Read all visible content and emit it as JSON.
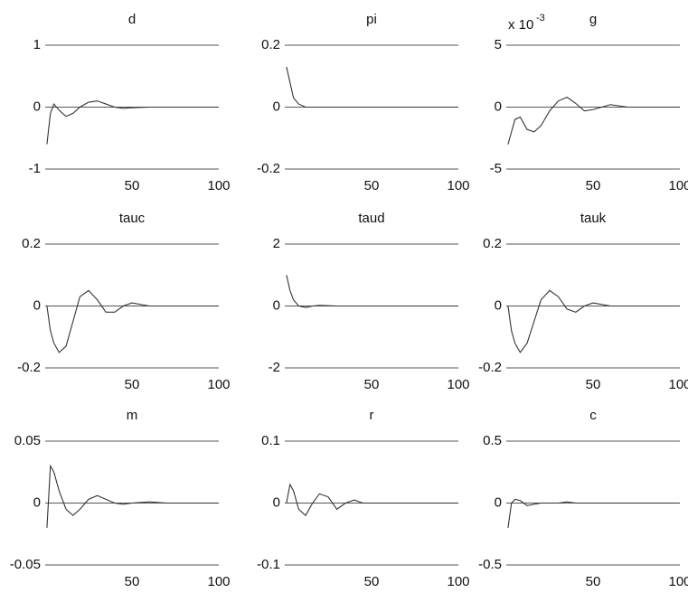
{
  "chart_data": [
    {
      "type": "line",
      "title": "d",
      "x": [
        1,
        3,
        5,
        8,
        12,
        16,
        20,
        25,
        30,
        35,
        40,
        45,
        50,
        60,
        70,
        80,
        100
      ],
      "values": [
        -0.6,
        -0.1,
        0.05,
        -0.05,
        -0.15,
        -0.1,
        0,
        0.08,
        0.1,
        0.05,
        0,
        -0.02,
        -0.01,
        0,
        0,
        0,
        0
      ],
      "xlim": [
        0,
        100
      ],
      "xticks": [
        50,
        100
      ],
      "ylim": [
        -1,
        1
      ],
      "yticks": [
        -1,
        0,
        1
      ],
      "grid": true,
      "color": "#333333"
    },
    {
      "type": "line",
      "title": "pi",
      "x": [
        1,
        3,
        5,
        8,
        12,
        16,
        20,
        25,
        30,
        35,
        40,
        45,
        50,
        60,
        70,
        80,
        100
      ],
      "values": [
        0.13,
        0.08,
        0.03,
        0.01,
        0,
        0,
        0,
        0,
        0,
        0,
        0,
        0,
        0,
        0,
        0,
        0,
        0
      ],
      "xlim": [
        0,
        100
      ],
      "xticks": [
        50,
        100
      ],
      "ylim": [
        -0.2,
        0.2
      ],
      "yticks": [
        -0.2,
        0,
        0.2
      ],
      "grid": true,
      "color": "#333333"
    },
    {
      "type": "line",
      "title": "g",
      "scale_label": "x 10",
      "scale_exponent": "-3",
      "x": [
        1,
        3,
        5,
        8,
        12,
        16,
        20,
        25,
        30,
        35,
        40,
        45,
        50,
        60,
        70,
        80,
        100
      ],
      "values": [
        -3,
        -2,
        -1,
        -0.8,
        -1.8,
        -2,
        -1.5,
        -0.3,
        0.5,
        0.8,
        0.3,
        -0.3,
        -0.2,
        0.2,
        0,
        0,
        0
      ],
      "xlim": [
        0,
        100
      ],
      "xticks": [
        50,
        100
      ],
      "ylim": [
        -5,
        5
      ],
      "yticks": [
        -5,
        0,
        5
      ],
      "grid": true,
      "color": "#333333"
    },
    {
      "type": "line",
      "title": "tauc",
      "x": [
        1,
        3,
        5,
        8,
        12,
        16,
        20,
        25,
        30,
        35,
        40,
        45,
        50,
        60,
        70,
        80,
        100
      ],
      "values": [
        0,
        -0.08,
        -0.12,
        -0.15,
        -0.13,
        -0.05,
        0.03,
        0.05,
        0.02,
        -0.02,
        -0.02,
        0,
        0.01,
        0,
        0,
        0,
        0
      ],
      "xlim": [
        0,
        100
      ],
      "xticks": [
        50,
        100
      ],
      "ylim": [
        -0.2,
        0.2
      ],
      "yticks": [
        -0.2,
        0,
        0.2
      ],
      "grid": true,
      "color": "#333333"
    },
    {
      "type": "line",
      "title": "taud",
      "x": [
        1,
        3,
        5,
        8,
        12,
        16,
        20,
        25,
        30,
        35,
        40,
        45,
        50,
        60,
        70,
        80,
        100
      ],
      "values": [
        1,
        0.5,
        0.2,
        0,
        -0.05,
        0,
        0.02,
        0.01,
        0,
        0,
        0,
        0,
        0,
        0,
        0,
        0,
        0
      ],
      "xlim": [
        0,
        100
      ],
      "xticks": [
        50,
        100
      ],
      "ylim": [
        -2,
        2
      ],
      "yticks": [
        -2,
        0,
        2
      ],
      "grid": true,
      "color": "#333333"
    },
    {
      "type": "line",
      "title": "tauk",
      "x": [
        1,
        3,
        5,
        8,
        12,
        16,
        20,
        25,
        30,
        35,
        40,
        45,
        50,
        60,
        70,
        80,
        100
      ],
      "values": [
        0,
        -0.08,
        -0.12,
        -0.15,
        -0.12,
        -0.05,
        0.02,
        0.05,
        0.03,
        -0.01,
        -0.02,
        0,
        0.01,
        0,
        0,
        0,
        0
      ],
      "xlim": [
        0,
        100
      ],
      "xticks": [
        50,
        100
      ],
      "ylim": [
        -0.2,
        0.2
      ],
      "yticks": [
        -0.2,
        0,
        0.2
      ],
      "grid": true,
      "color": "#333333"
    },
    {
      "type": "line",
      "title": "m",
      "x": [
        1,
        3,
        5,
        8,
        12,
        16,
        20,
        25,
        30,
        35,
        40,
        45,
        50,
        60,
        70,
        80,
        100
      ],
      "values": [
        -0.02,
        0.03,
        0.025,
        0.01,
        -0.005,
        -0.01,
        -0.005,
        0.003,
        0.006,
        0.003,
        0,
        -0.001,
        0,
        0.001,
        0,
        0,
        0
      ],
      "xlim": [
        0,
        100
      ],
      "xticks": [
        50,
        100
      ],
      "ylim": [
        -0.05,
        0.05
      ],
      "yticks": [
        -0.05,
        0,
        0.05
      ],
      "grid": true,
      "color": "#333333"
    },
    {
      "type": "line",
      "title": "r",
      "x": [
        1,
        3,
        5,
        8,
        12,
        16,
        20,
        25,
        30,
        35,
        40,
        45,
        50,
        60,
        70,
        80,
        100
      ],
      "values": [
        0,
        0.03,
        0.02,
        -0.01,
        -0.02,
        0,
        0.015,
        0.01,
        -0.01,
        0,
        0.005,
        0,
        0,
        0,
        0,
        0,
        0
      ],
      "xlim": [
        0,
        100
      ],
      "xticks": [
        50,
        100
      ],
      "ylim": [
        -0.1,
        0.1
      ],
      "yticks": [
        -0.1,
        0,
        0.1
      ],
      "grid": true,
      "color": "#333333"
    },
    {
      "type": "line",
      "title": "c",
      "x": [
        1,
        3,
        5,
        8,
        12,
        16,
        20,
        25,
        30,
        35,
        40,
        45,
        50,
        60,
        70,
        80,
        100
      ],
      "values": [
        -0.2,
        0,
        0.03,
        0.02,
        -0.02,
        -0.01,
        0,
        0,
        0,
        0.01,
        0,
        0,
        0,
        0,
        0,
        0,
        0
      ],
      "xlim": [
        0,
        100
      ],
      "xticks": [
        50,
        100
      ],
      "ylim": [
        -0.5,
        0.5
      ],
      "yticks": [
        -0.5,
        0,
        0.5
      ],
      "grid": true,
      "color": "#333333"
    }
  ]
}
